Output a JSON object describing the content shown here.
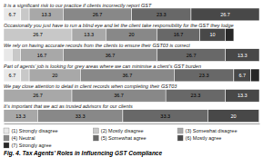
{
  "chart_data": {
    "type": "bar",
    "orientation": "horizontal",
    "stacked": true,
    "title": "Fig. 4. Tax Agents’ Roles in Influencing GST Compliance",
    "categories": [
      "It is a significant risk to our practice if clients incorrectly report GST",
      "Occasionally you just have to run a blind eye and let the client take responsibility for the GST they lodge",
      "We rely on having accurate records from the clients to ensure their GST03 is correct",
      "Part of agents’ job is looking for grey areas where we can minimise a client’s GST burden",
      "We pay close attention to detail in client records when completing their GST03",
      "It’s important that we act as trusted advisors for our clients"
    ],
    "series": [
      {
        "name": "(1) Strongly disagree",
        "color": "#e8e8e8",
        "values": [
          6.7,
          0.0,
          3.3,
          6.7,
          0.0,
          0.0
        ],
        "value_labels": [
          "6.7",
          null,
          null,
          "6.7",
          null,
          null
        ]
      },
      {
        "name": "(2) Mostly disagree",
        "color": "#c8c8c8",
        "values": [
          3.3,
          26.7,
          3.3,
          3.3,
          0.0,
          0.0
        ],
        "value_labels": [
          null,
          "26.7",
          null,
          null,
          null,
          null
        ]
      },
      {
        "name": "(3) Somewhat disagree",
        "color": "#a8a8a8",
        "values": [
          13.3,
          13.3,
          16.7,
          20.0,
          26.7,
          13.3
        ],
        "value_labels": [
          "13.3",
          "13.3",
          "16.7",
          "20",
          "26.7",
          "13.3"
        ]
      },
      {
        "name": "(4) Neutral",
        "color": "#888888",
        "values": [
          26.7,
          20.0,
          36.7,
          36.7,
          36.7,
          33.3
        ],
        "value_labels": [
          "26.7",
          "20",
          "36.7",
          "36.7",
          "36.7",
          "33.3"
        ]
      },
      {
        "name": "(5) Somewhat agree",
        "color": "#686868",
        "values": [
          23.3,
          16.7,
          26.7,
          23.3,
          23.3,
          33.3
        ],
        "value_labels": [
          "23.3",
          "16.7",
          "26.7",
          "23.3",
          "23.3",
          "33.3"
        ]
      },
      {
        "name": "(6) Mostly agree",
        "color": "#484848",
        "values": [
          26.7,
          10.0,
          13.3,
          6.7,
          13.3,
          20.0
        ],
        "value_labels": [
          "26.7",
          "10",
          "13.3",
          "6.7",
          "13.3",
          "20"
        ]
      },
      {
        "name": "(7) Strongly agree",
        "color": "#282828",
        "values": [
          0.0,
          3.3,
          0.0,
          3.3,
          0.0,
          0.0
        ],
        "value_labels": [
          null,
          null,
          null,
          null,
          null,
          null
        ]
      }
    ],
    "xlim": [
      0,
      100
    ],
    "data_labels": true,
    "tick_labels": false,
    "grid": false
  }
}
